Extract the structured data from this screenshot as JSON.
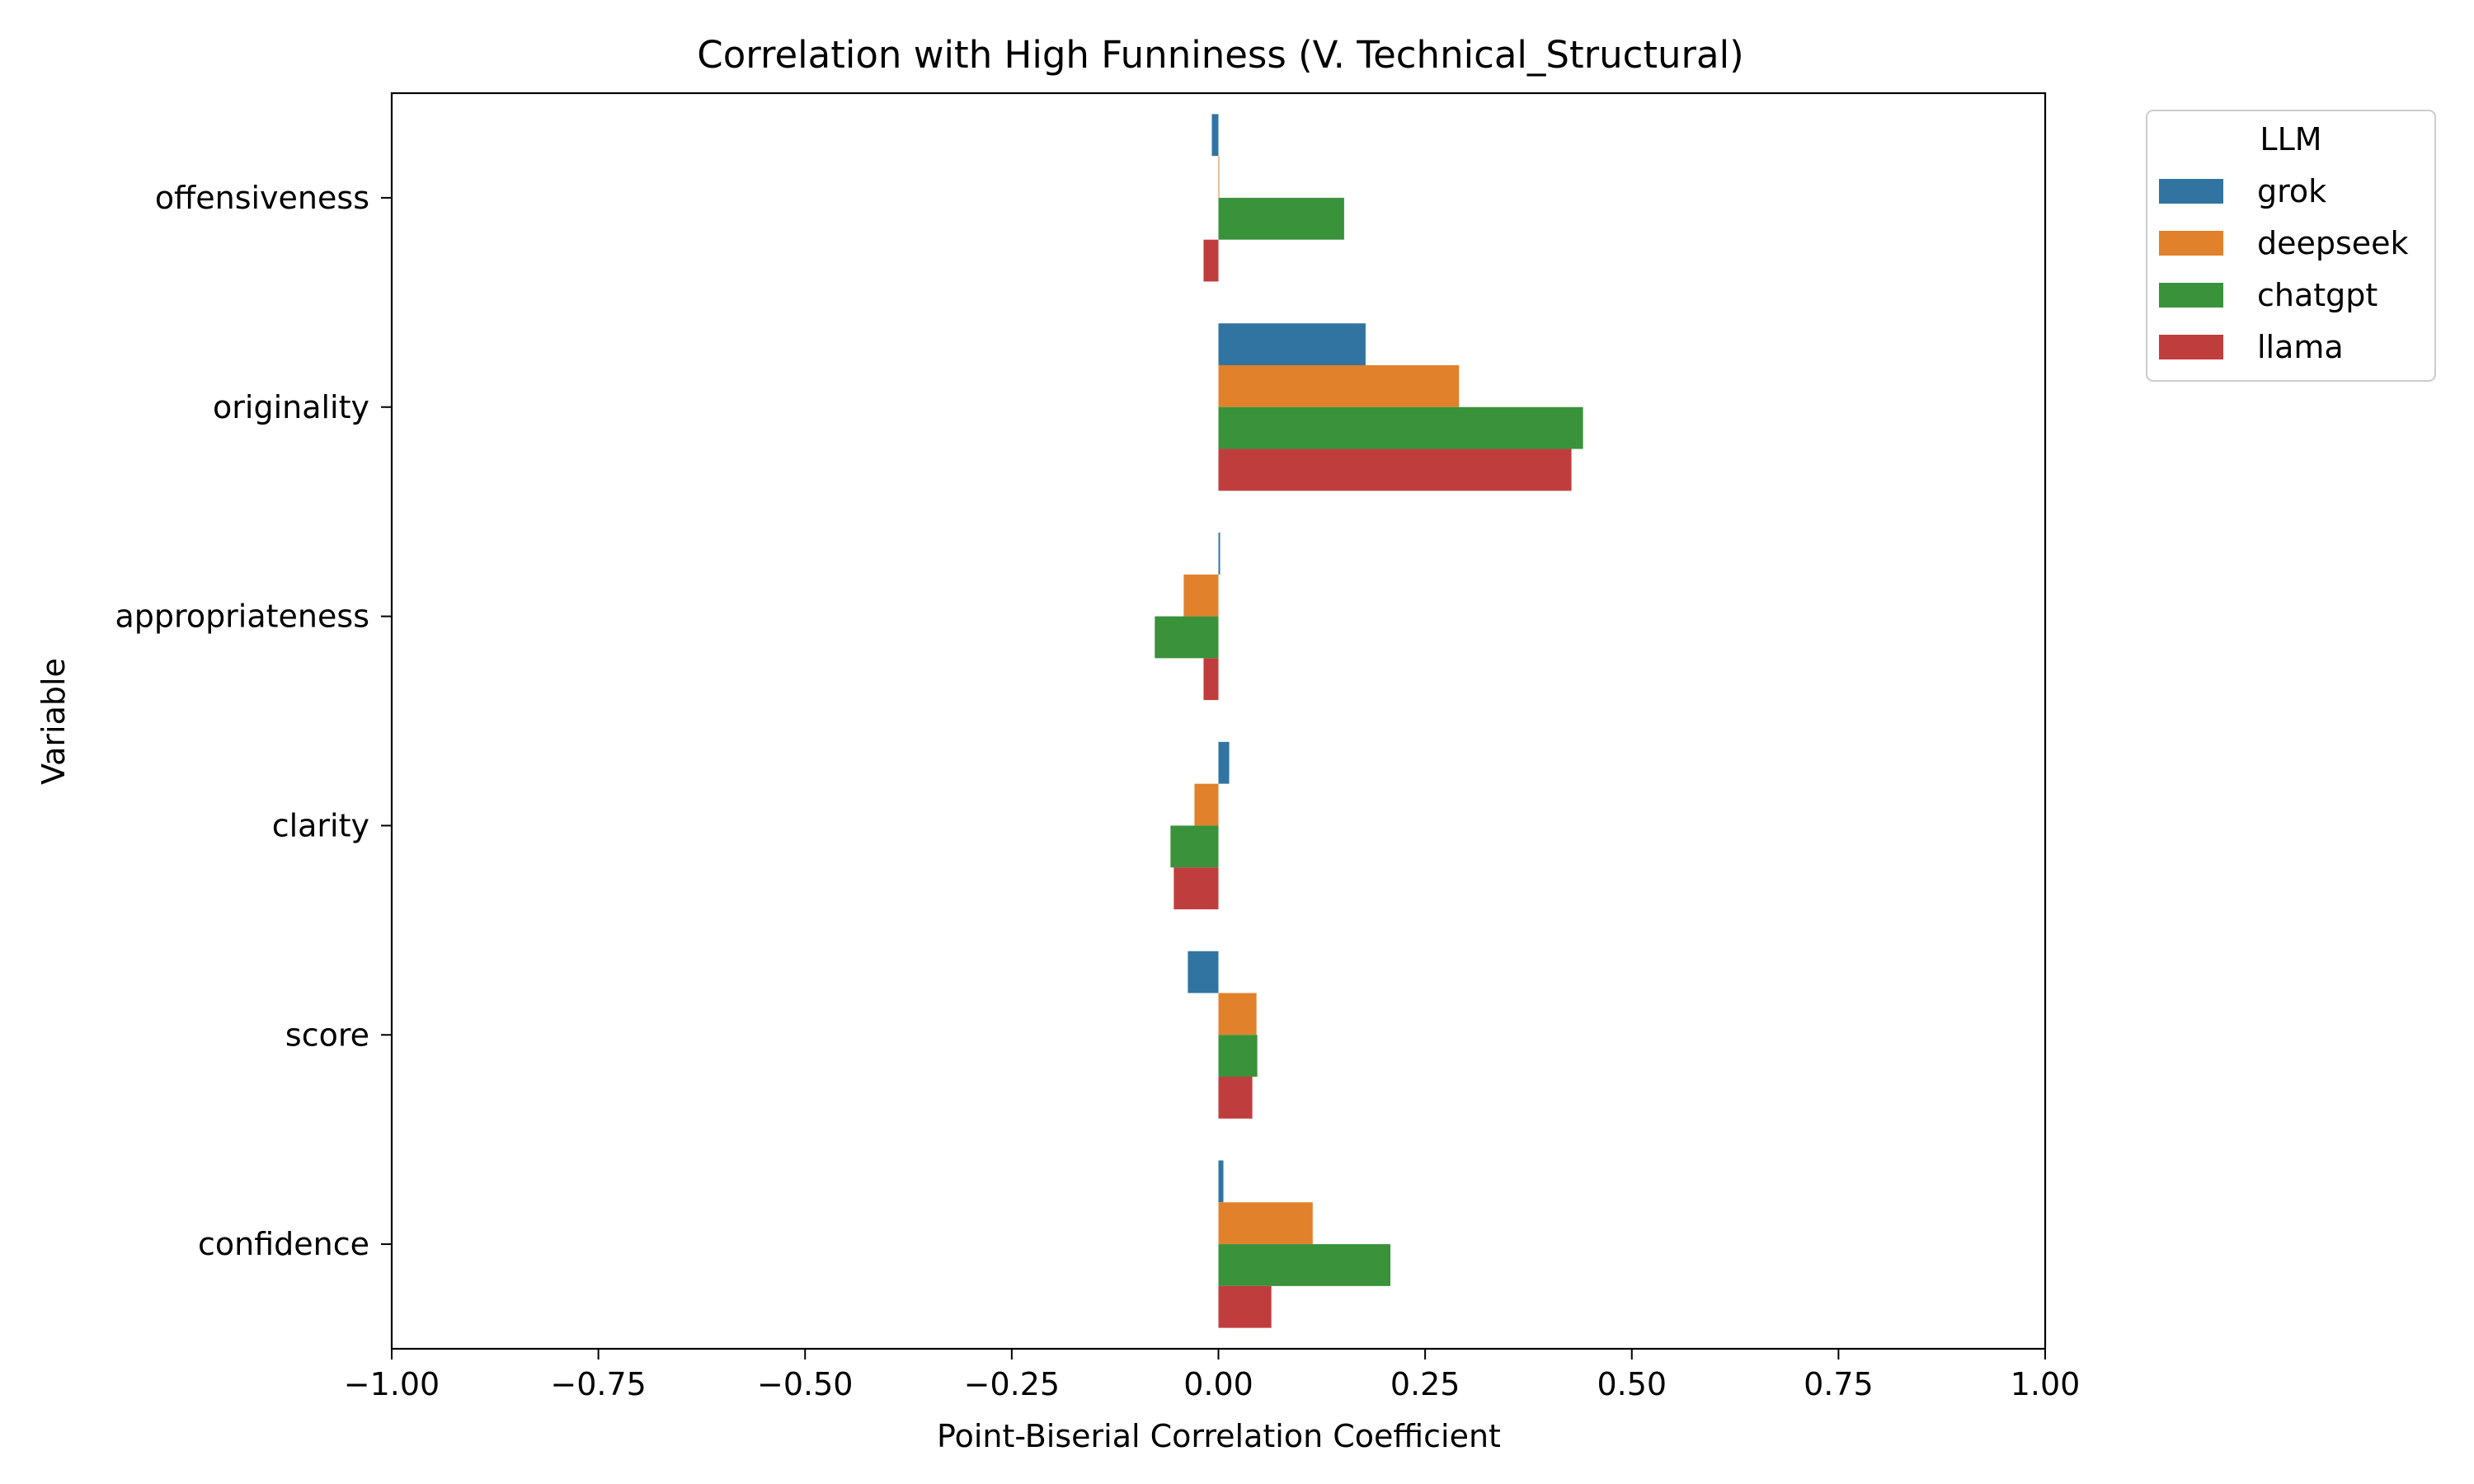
{
  "chart_data": {
    "type": "bar",
    "orientation": "horizontal",
    "title": "Correlation with High Funniness (V. Technical_Structural)",
    "xlabel": "Point-Biserial Correlation Coefficient",
    "ylabel": "Variable",
    "xlim": [
      -1.0,
      1.0
    ],
    "xticks": [
      "−1.00",
      "−0.75",
      "−0.50",
      "−0.25",
      "0.00",
      "0.25",
      "0.50",
      "0.75",
      "1.00"
    ],
    "xtick_values": [
      -1.0,
      -0.75,
      -0.5,
      -0.25,
      0.0,
      0.25,
      0.5,
      0.75,
      1.0
    ],
    "categories": [
      "offensiveness",
      "originality",
      "appropriateness",
      "clarity",
      "score",
      "confidence"
    ],
    "legend": {
      "title": "LLM",
      "placement": "outside-top-right"
    },
    "grid": false,
    "series": [
      {
        "name": "grok",
        "color": "#3274a1",
        "values": [
          -0.008,
          0.178,
          0.002,
          0.013,
          -0.037,
          0.006
        ]
      },
      {
        "name": "deepseek",
        "color": "#e1812c",
        "values": [
          0.001,
          0.291,
          -0.042,
          -0.029,
          0.046,
          0.114
        ]
      },
      {
        "name": "chatgpt",
        "color": "#3a923a",
        "values": [
          0.152,
          0.441,
          -0.077,
          -0.058,
          0.047,
          0.208
        ]
      },
      {
        "name": "llama",
        "color": "#c03d3e",
        "values": [
          -0.018,
          0.427,
          -0.018,
          -0.054,
          0.041,
          0.064
        ]
      }
    ]
  }
}
